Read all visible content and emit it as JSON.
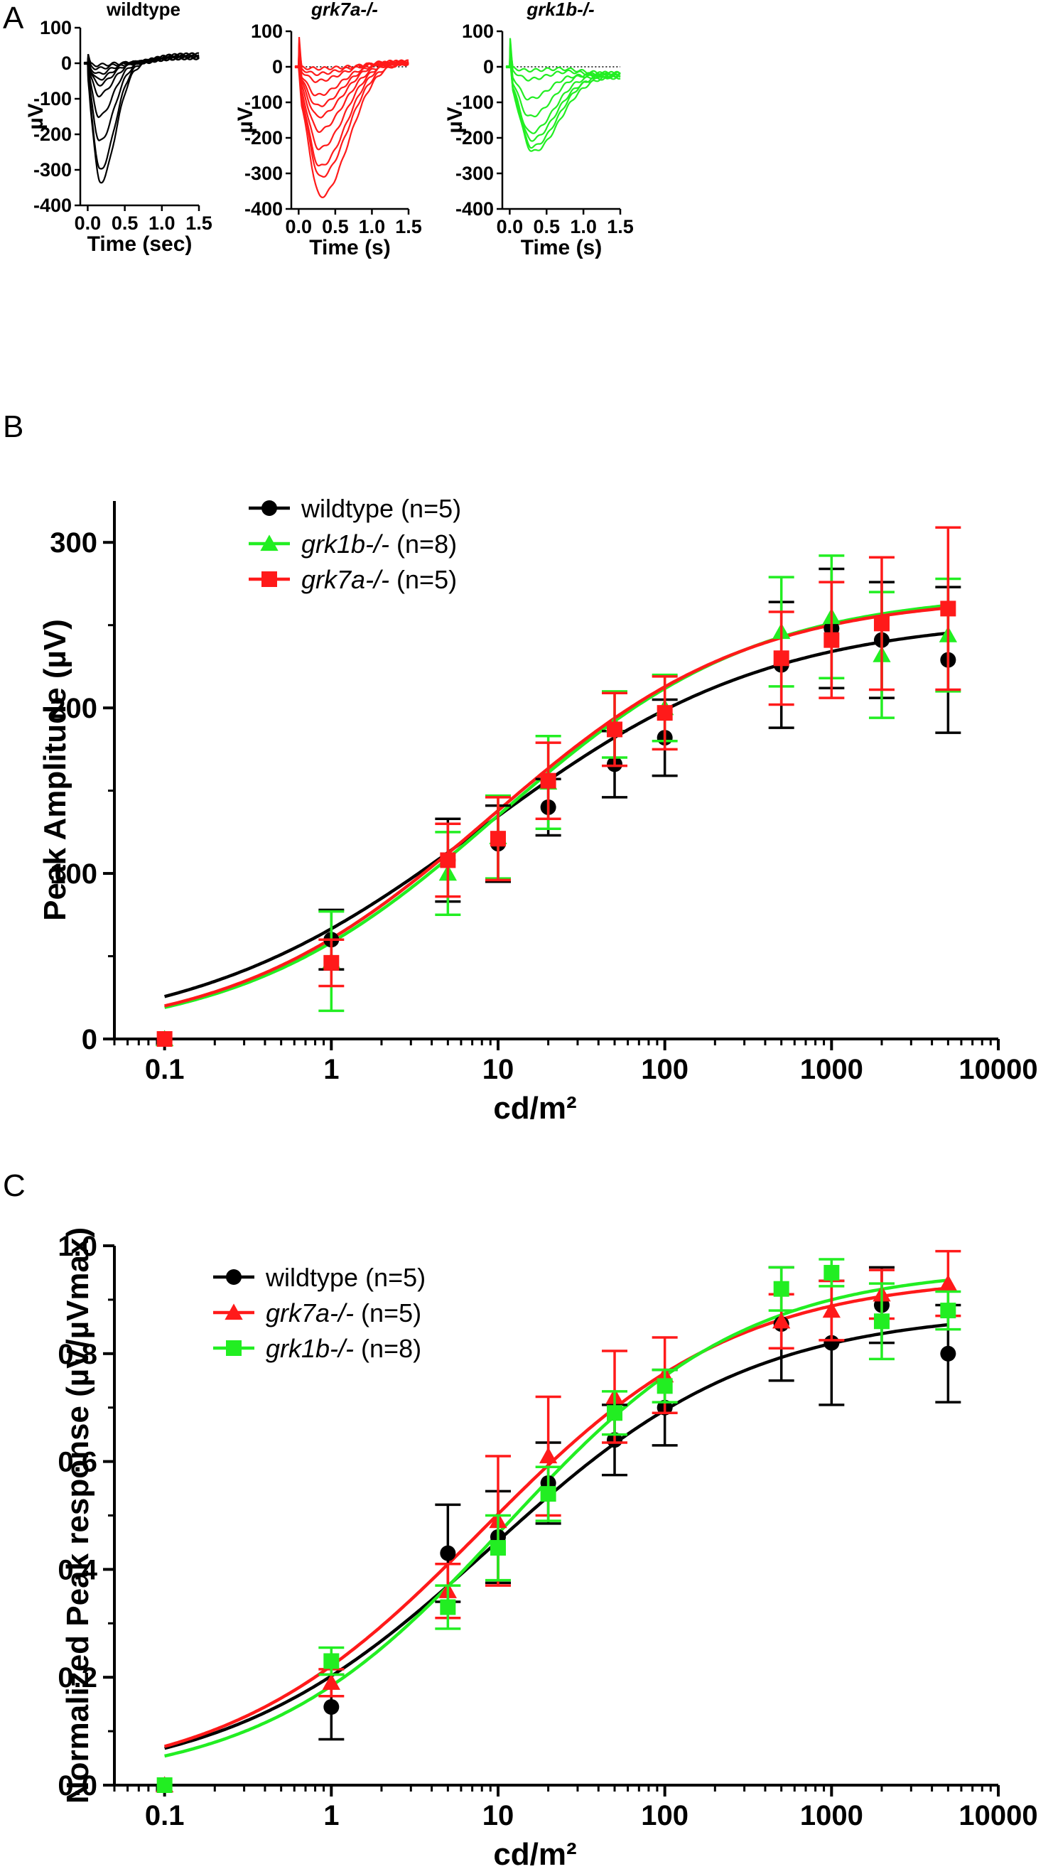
{
  "panels": {
    "A": "A",
    "B": "B",
    "C": "C"
  },
  "colors": {
    "wildtype": "#000000",
    "grk7a": "#ff1a1a",
    "grk1b": "#22ee22"
  },
  "chart_data": [
    {
      "id": "A1",
      "type": "line",
      "title": "wildtype",
      "title_italic": false,
      "xlabel": "Time (sec)",
      "ylabel": "µV",
      "xlim": [
        -0.1,
        1.5
      ],
      "ylim": [
        -400,
        100
      ],
      "xticks": [
        "0.0",
        "0.5",
        "1.0",
        "1.5"
      ],
      "xtick_values": [
        0,
        0.5,
        1.0,
        1.5
      ],
      "yticks": [
        "100",
        "0",
        "-100",
        "-200",
        "-300",
        "-400"
      ],
      "ytick_values": [
        100,
        0,
        -100,
        -200,
        -300,
        -400
      ],
      "color": "#000000",
      "zero_line": false,
      "traces_peak_uV": [
        -5,
        -15,
        -30,
        -45,
        -60,
        -90,
        -150,
        -220,
        -300,
        -335
      ],
      "trace_time_to_peak_s": 0.15,
      "trace_start_artifact_uV": 30,
      "trace_end_uV": 25
    },
    {
      "id": "A2",
      "type": "line",
      "title": "grk7a-/-",
      "title_italic": true,
      "xlabel": "Time (s)",
      "ylabel": "µV",
      "xlim": [
        -0.1,
        1.5
      ],
      "ylim": [
        -400,
        100
      ],
      "xticks": [
        "0.0",
        "0.5",
        "1.0",
        "1.5"
      ],
      "xtick_values": [
        0,
        0.5,
        1.0,
        1.5
      ],
      "yticks": [
        "100",
        "0",
        "-100",
        "-200",
        "-300",
        "-400"
      ],
      "ytick_values": [
        100,
        0,
        -100,
        -200,
        -300,
        -400
      ],
      "color": "#ff1a1a",
      "zero_line": true,
      "traces_peak_uV": [
        -5,
        -20,
        -40,
        -80,
        -110,
        -140,
        -180,
        -230,
        -280,
        -310,
        -365
      ],
      "trace_time_to_peak_s": 0.27,
      "trace_start_artifact_uV": 100,
      "trace_end_uV": 15
    },
    {
      "id": "A3",
      "type": "line",
      "title": "grk1b-/-",
      "title_italic": true,
      "xlabel": "Time (s)",
      "ylabel": "µV",
      "xlim": [
        -0.1,
        1.5
      ],
      "ylim": [
        -400,
        100
      ],
      "xticks": [
        "0.0",
        "0.5",
        "1.0",
        "1.5"
      ],
      "xtick_values": [
        0,
        0.5,
        1.0,
        1.5
      ],
      "yticks": [
        "100",
        "0",
        "-100",
        "-200",
        "-300",
        "-400"
      ],
      "ytick_values": [
        100,
        0,
        -100,
        -200,
        -300,
        -400
      ],
      "color": "#22ee22",
      "zero_line": true,
      "traces_peak_uV": [
        -10,
        -35,
        -90,
        -140,
        -185,
        -205,
        -225,
        -238
      ],
      "trace_time_to_peak_s": 0.28,
      "trace_start_artifact_uV": 100,
      "trace_end_uV": -30
    },
    {
      "id": "B",
      "type": "scatter",
      "xlabel": "cd/m²",
      "ylabel": "Peak Amplitude (µV)",
      "x_scale": "log",
      "xlim": [
        0.05,
        10000
      ],
      "ylim": [
        0,
        325
      ],
      "xticks": [
        "0.1",
        "1",
        "10",
        "100",
        "1000",
        "10000"
      ],
      "xtick_values": [
        0.1,
        1,
        10,
        100,
        1000,
        10000
      ],
      "yticks": [
        "0",
        "100",
        "200",
        "300"
      ],
      "ytick_values": [
        0,
        100,
        200,
        300
      ],
      "legend_position": "top-left",
      "x": [
        0.1,
        1,
        5,
        10,
        20,
        50,
        100,
        500,
        1000,
        2000,
        5000
      ],
      "series": [
        {
          "label": "wildtype",
          "label_italic": false,
          "n_label": " (n=5)",
          "color": "#000000",
          "marker": "circle",
          "y": [
            0,
            60,
            108,
            118,
            140,
            166,
            182,
            226,
            248,
            241,
            229
          ],
          "err": [
            0,
            18,
            25,
            23,
            17,
            20,
            23,
            38,
            36,
            35,
            44
          ],
          "fit": {
            "ymax": 255,
            "ec50": 8,
            "hill": 0.5
          }
        },
        {
          "label": "grk1b-/-",
          "label_italic": true,
          "n_label": " (n=8)",
          "color": "#22ee22",
          "marker": "triangle",
          "y": [
            0,
            47,
            100,
            122,
            155,
            190,
            200,
            246,
            255,
            232,
            244
          ],
          "err": [
            0,
            30,
            25,
            25,
            28,
            20,
            20,
            33,
            37,
            38,
            34
          ],
          "fit": {
            "ymax": 270,
            "ec50": 10,
            "hill": 0.56
          }
        },
        {
          "label": "grk7a-/-",
          "label_italic": true,
          "n_label": " (n=5)",
          "color": "#ff1a1a",
          "marker": "square",
          "y": [
            0,
            46,
            108,
            121,
            156,
            187,
            197,
            230,
            241,
            251,
            260
          ],
          "err": [
            0,
            14,
            22,
            25,
            23,
            22,
            22,
            28,
            35,
            40,
            49
          ],
          "fit": {
            "ymax": 268,
            "ec50": 9,
            "hill": 0.56
          }
        }
      ]
    },
    {
      "id": "C",
      "type": "scatter",
      "xlabel": "cd/m²",
      "ylabel": "Normalized Peak response (µV/µVmax)",
      "x_scale": "log",
      "xlim": [
        0.05,
        10000
      ],
      "ylim": [
        0,
        1.0
      ],
      "xticks": [
        "0.1",
        "1",
        "10",
        "100",
        "1000",
        "10000"
      ],
      "xtick_values": [
        0.1,
        1,
        10,
        100,
        1000,
        10000
      ],
      "yticks": [
        "0.0",
        "0.2",
        "0.4",
        "0.6",
        "0.8",
        "1.0"
      ],
      "ytick_values": [
        0,
        0.2,
        0.4,
        0.6,
        0.8,
        1.0
      ],
      "legend_position": "top-left",
      "x": [
        0.1,
        1,
        5,
        10,
        20,
        50,
        100,
        500,
        1000,
        2000,
        5000
      ],
      "series": [
        {
          "label": "wildtype",
          "label_italic": false,
          "n_label": " (n=5)",
          "color": "#000000",
          "marker": "circle",
          "y": [
            0,
            0.145,
            0.43,
            0.46,
            0.56,
            0.64,
            0.7,
            0.855,
            0.82,
            0.89,
            0.8
          ],
          "err": [
            0,
            0.06,
            0.09,
            0.085,
            0.075,
            0.065,
            0.07,
            0.105,
            0.115,
            0.07,
            0.09
          ],
          "fit": {
            "ymax": 0.88,
            "ec50": 9.0,
            "hill": 0.55
          }
        },
        {
          "label": "grk7a-/-",
          "label_italic": true,
          "n_label": " (n=5)",
          "color": "#ff1a1a",
          "marker": "triangle",
          "y": [
            0,
            0.19,
            0.36,
            0.49,
            0.61,
            0.72,
            0.76,
            0.86,
            0.88,
            0.91,
            0.93
          ],
          "err": [
            0,
            0.025,
            0.05,
            0.12,
            0.11,
            0.085,
            0.07,
            0.05,
            0.055,
            0.045,
            0.06
          ],
          "fit": {
            "ymax": 0.945,
            "ec50": 8.0,
            "hill": 0.57
          }
        },
        {
          "label": "grk1b-/-",
          "label_italic": true,
          "n_label": " (n=8)",
          "color": "#22ee22",
          "marker": "square",
          "y": [
            0,
            0.23,
            0.33,
            0.44,
            0.54,
            0.69,
            0.74,
            0.92,
            0.95,
            0.86,
            0.88
          ],
          "err": [
            0,
            0.025,
            0.04,
            0.06,
            0.05,
            0.04,
            0.03,
            0.04,
            0.025,
            0.07,
            0.035
          ],
          "fit": {
            "ymax": 0.96,
            "ec50": 11.0,
            "hill": 0.6
          }
        }
      ]
    }
  ]
}
